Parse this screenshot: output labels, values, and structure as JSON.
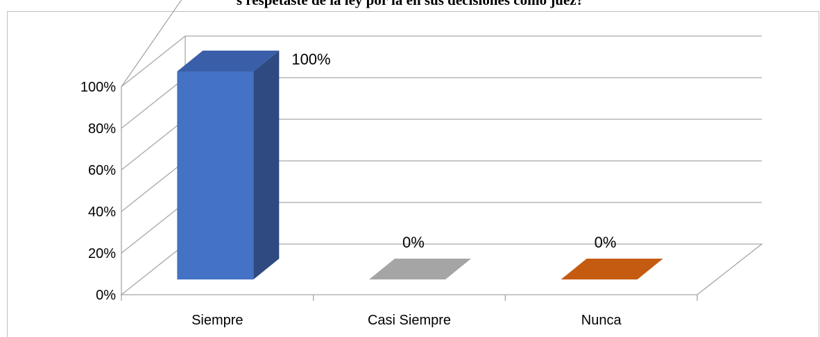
{
  "chart_data": {
    "type": "bar",
    "title": "s respetaste de la ley por la en sus decisiones como juez?",
    "categories": [
      "Siempre",
      "Casi Siempre",
      "Nunca"
    ],
    "values": [
      100,
      0,
      0
    ],
    "data_labels": [
      "100%",
      "0%",
      "0%"
    ],
    "y_ticks": [
      "0%",
      "20%",
      "40%",
      "60%",
      "80%",
      "100%"
    ],
    "ylim": [
      0,
      100
    ],
    "grid": true,
    "style": "3d-column",
    "colors": {
      "series": [
        "#4472c4",
        "#a5a5a5",
        "#c55a11"
      ],
      "series_dark": [
        "#2e4a80",
        "#7f7f7f",
        "#8f3f0b"
      ],
      "series_top": [
        "#3a5fa8",
        "#9a9a9a",
        "#b5520f"
      ],
      "grid": "#a6a6a6"
    }
  }
}
